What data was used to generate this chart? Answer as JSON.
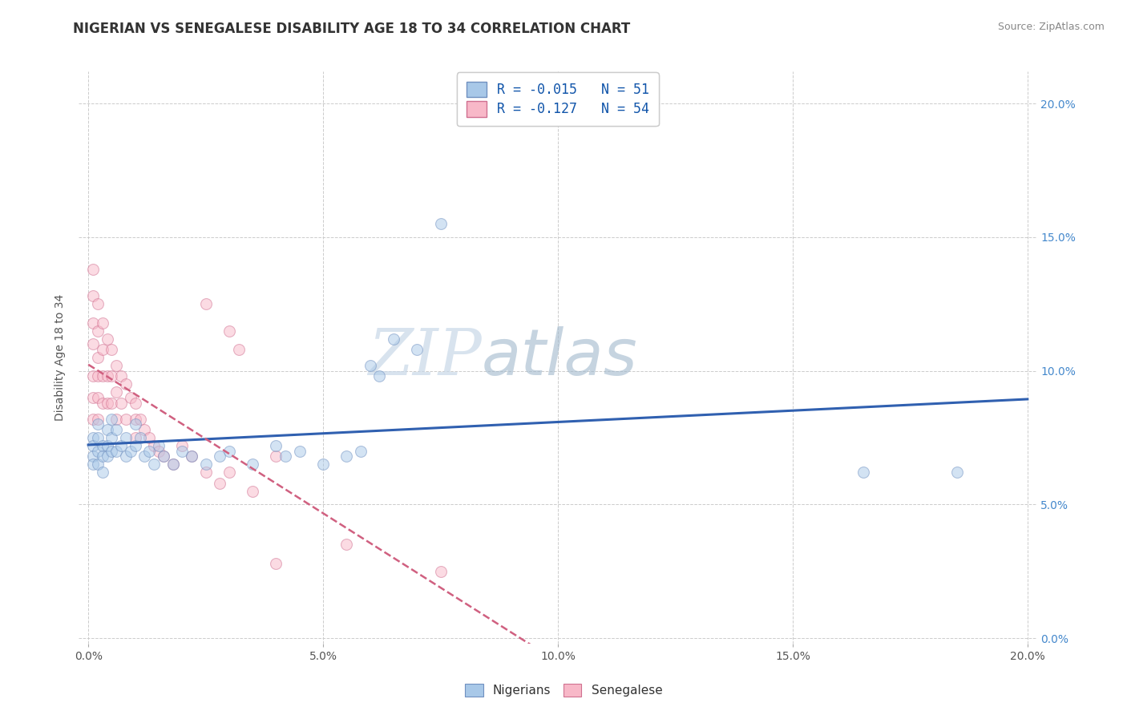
{
  "title": "NIGERIAN VS SENEGALESE DISABILITY AGE 18 TO 34 CORRELATION CHART",
  "source": "Source: ZipAtlas.com",
  "ylabel": "Disability Age 18 to 34",
  "xlim": [
    -0.002,
    0.202
  ],
  "ylim": [
    -0.002,
    0.212
  ],
  "xticks": [
    0.0,
    0.05,
    0.1,
    0.15,
    0.2
  ],
  "yticks": [
    0.0,
    0.05,
    0.1,
    0.15,
    0.2
  ],
  "xticklabels": [
    "0.0%",
    "5.0%",
    "10.0%",
    "15.0%",
    "20.0%"
  ],
  "yticklabels": [
    "0.0%",
    "5.0%",
    "10.0%",
    "15.0%",
    "20.0%"
  ],
  "nigerian_color": "#a8c8e8",
  "senegalese_color": "#f8b8c8",
  "nigerian_edge": "#7090c0",
  "senegalese_edge": "#d07090",
  "trend_nigerian_color": "#3060b0",
  "trend_senegalese_color": "#d06080",
  "legend_label_nigerian": "R = -0.015   N = 51",
  "legend_label_senegalese": "R = -0.127   N = 54",
  "legend_group_nigerian": "Nigerians",
  "legend_group_senegalese": "Senegalese",
  "R_nigerian": -0.015,
  "N_nigerian": 51,
  "R_senegalese": -0.127,
  "N_senegalese": 54,
  "watermark_zip": "ZIP",
  "watermark_atlas": "atlas",
  "background_color": "#ffffff",
  "grid_color": "#cccccc",
  "title_fontsize": 12,
  "axis_label_fontsize": 10,
  "tick_fontsize": 10,
  "marker_size": 100,
  "marker_alpha": 0.5,
  "nigerian_x": [
    0.001,
    0.001,
    0.001,
    0.001,
    0.002,
    0.002,
    0.002,
    0.002,
    0.003,
    0.003,
    0.003,
    0.004,
    0.004,
    0.004,
    0.005,
    0.005,
    0.005,
    0.006,
    0.006,
    0.007,
    0.008,
    0.008,
    0.009,
    0.01,
    0.01,
    0.011,
    0.012,
    0.013,
    0.014,
    0.015,
    0.016,
    0.018,
    0.02,
    0.022,
    0.025,
    0.028,
    0.03,
    0.035,
    0.04,
    0.042,
    0.045,
    0.05,
    0.055,
    0.058,
    0.06,
    0.062,
    0.065,
    0.07,
    0.075,
    0.165,
    0.185
  ],
  "nigerian_y": [
    0.075,
    0.072,
    0.068,
    0.065,
    0.08,
    0.075,
    0.07,
    0.065,
    0.072,
    0.068,
    0.062,
    0.078,
    0.072,
    0.068,
    0.082,
    0.075,
    0.07,
    0.078,
    0.07,
    0.072,
    0.075,
    0.068,
    0.07,
    0.08,
    0.072,
    0.075,
    0.068,
    0.07,
    0.065,
    0.072,
    0.068,
    0.065,
    0.07,
    0.068,
    0.065,
    0.068,
    0.07,
    0.065,
    0.072,
    0.068,
    0.07,
    0.065,
    0.068,
    0.07,
    0.102,
    0.098,
    0.112,
    0.108,
    0.155,
    0.062,
    0.062
  ],
  "senegalese_x": [
    0.001,
    0.001,
    0.001,
    0.001,
    0.001,
    0.001,
    0.001,
    0.002,
    0.002,
    0.002,
    0.002,
    0.002,
    0.002,
    0.003,
    0.003,
    0.003,
    0.003,
    0.004,
    0.004,
    0.004,
    0.005,
    0.005,
    0.005,
    0.006,
    0.006,
    0.006,
    0.007,
    0.007,
    0.008,
    0.008,
    0.009,
    0.01,
    0.01,
    0.01,
    0.011,
    0.012,
    0.013,
    0.014,
    0.015,
    0.016,
    0.018,
    0.02,
    0.022,
    0.025,
    0.028,
    0.03,
    0.035,
    0.04,
    0.025,
    0.03,
    0.032,
    0.04,
    0.055,
    0.075
  ],
  "senegalese_y": [
    0.138,
    0.128,
    0.118,
    0.11,
    0.098,
    0.09,
    0.082,
    0.125,
    0.115,
    0.105,
    0.098,
    0.09,
    0.082,
    0.118,
    0.108,
    0.098,
    0.088,
    0.112,
    0.098,
    0.088,
    0.108,
    0.098,
    0.088,
    0.102,
    0.092,
    0.082,
    0.098,
    0.088,
    0.095,
    0.082,
    0.09,
    0.088,
    0.082,
    0.075,
    0.082,
    0.078,
    0.075,
    0.072,
    0.07,
    0.068,
    0.065,
    0.072,
    0.068,
    0.062,
    0.058,
    0.062,
    0.055,
    0.068,
    0.125,
    0.115,
    0.108,
    0.028,
    0.035,
    0.025
  ]
}
